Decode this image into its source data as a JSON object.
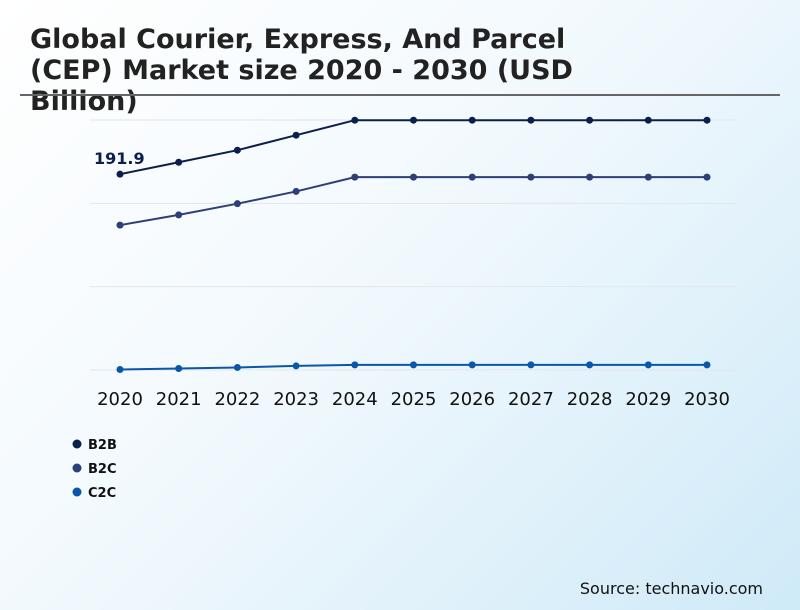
{
  "chart_data": {
    "type": "line",
    "title": "Global Courier, Express, And Parcel (CEP) Market size 2020 - 2030 (USD Billion)",
    "xlabel": "",
    "ylabel": "",
    "categories": [
      "2020",
      "2021",
      "2022",
      "2023",
      "2024",
      "2025",
      "2026",
      "2027",
      "2028",
      "2029",
      "2030"
    ],
    "ylim": [
      0,
      245
    ],
    "grid": true,
    "legend_position": "bottom-left",
    "series": [
      {
        "name": "B2B",
        "color": "#0b1f4b",
        "values": [
          191.9,
          203.6,
          215.4,
          230.1,
          244.8,
          244.8,
          244.8,
          244.8,
          244.8,
          244.8,
          244.8
        ]
      },
      {
        "name": "B2C",
        "color": "#2c3f78",
        "values": [
          142,
          152,
          163,
          175,
          189,
          189,
          189,
          189,
          189,
          189,
          189
        ]
      },
      {
        "name": "C2C",
        "color": "#0a56a8",
        "values": [
          0.5,
          1.5,
          2.5,
          4,
          5,
          5,
          5,
          5,
          5,
          5,
          5
        ]
      }
    ],
    "annotations": [
      {
        "series": "B2B",
        "category": "2020",
        "text": "191.9"
      }
    ]
  },
  "source": "Source: technavio.com"
}
